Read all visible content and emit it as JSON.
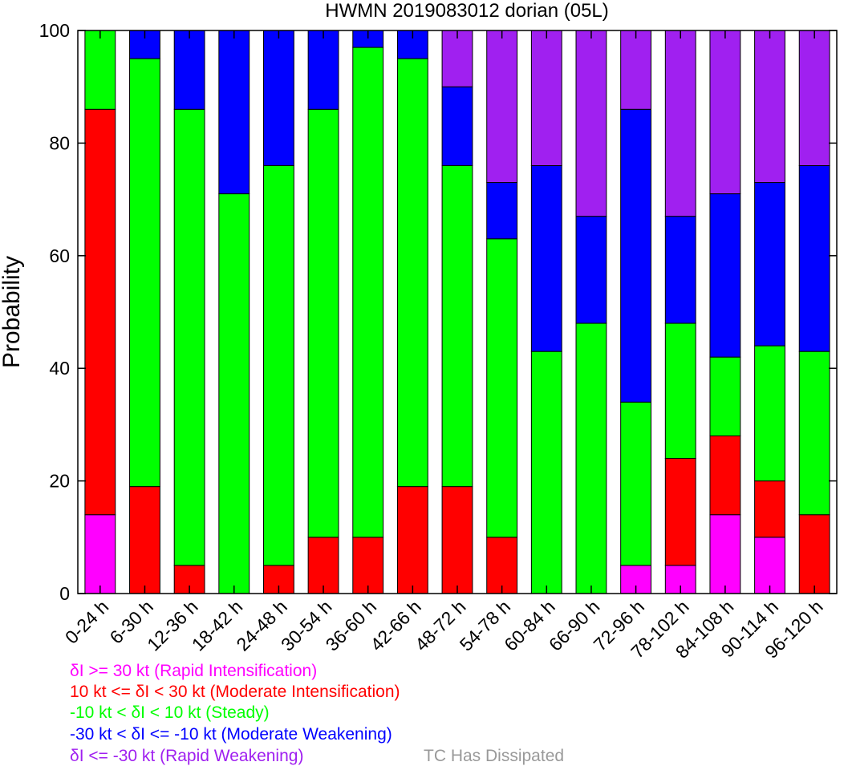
{
  "chart_data": {
    "type": "bar",
    "stacked": true,
    "title": "HWMN 2019083012 dorian (05L)",
    "ylabel": "Probability",
    "xlabel": "",
    "ylim": [
      0,
      100
    ],
    "yticks": [
      0,
      20,
      40,
      60,
      80,
      100
    ],
    "categories": [
      "0-24 h",
      "6-30 h",
      "12-36 h",
      "18-42 h",
      "24-48 h",
      "30-54 h",
      "36-60 h",
      "42-66 h",
      "48-72 h",
      "54-78 h",
      "60-84 h",
      "66-90 h",
      "72-96 h",
      "78-102 h",
      "84-108 h",
      "90-114 h",
      "96-120 h"
    ],
    "series": [
      {
        "name": "δI >= 30 kt (Rapid Intensification)",
        "color": "#ff00ff",
        "values": [
          14,
          0,
          0,
          0,
          0,
          0,
          0,
          0,
          0,
          0,
          0,
          0,
          5,
          5,
          14,
          10,
          0
        ]
      },
      {
        "name": "10 kt <= δI < 30 kt (Moderate Intensification)",
        "color": "#ff0000",
        "values": [
          72,
          19,
          5,
          0,
          5,
          10,
          10,
          19,
          19,
          10,
          0,
          0,
          0,
          19,
          14,
          10,
          14
        ]
      },
      {
        "name": "-10 kt < δI < 10 kt (Steady)",
        "color": "#00ff00",
        "values": [
          14,
          76,
          81,
          71,
          71,
          76,
          87,
          76,
          57,
          53,
          43,
          48,
          29,
          24,
          14,
          24,
          29
        ]
      },
      {
        "name": "-30 kt < δI <= -10 kt (Moderate Weakening)",
        "color": "#0000ff",
        "values": [
          0,
          5,
          14,
          29,
          24,
          14,
          3,
          5,
          14,
          10,
          33,
          19,
          52,
          19,
          29,
          29,
          33
        ]
      },
      {
        "name": "δI <= -30 kt (Rapid Weakening)",
        "color": "#a020f0",
        "values": [
          0,
          0,
          0,
          0,
          0,
          0,
          0,
          0,
          10,
          27,
          24,
          33,
          14,
          33,
          29,
          27,
          24
        ]
      },
      {
        "name": "TC Has Dissipated",
        "color": "#999999",
        "values": [
          0,
          0,
          0,
          0,
          0,
          0,
          0,
          0,
          0,
          0,
          0,
          0,
          0,
          0,
          0,
          0,
          0
        ]
      }
    ],
    "grid": false,
    "legend_position": "bottom-left"
  }
}
